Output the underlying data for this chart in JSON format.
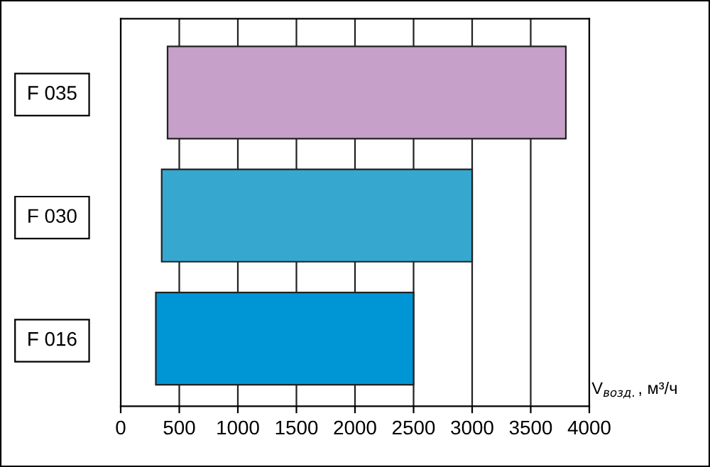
{
  "chart_data": {
    "type": "bar",
    "orientation": "horizontal",
    "categories": [
      "F 035",
      "F 030",
      "F 016"
    ],
    "values": [
      3400,
      2650,
      2200
    ],
    "base": [
      400,
      350,
      300
    ],
    "colors": [
      "#c6a0c9",
      "#36a8cf",
      "#0096d6"
    ],
    "xlabel": "V$_{возд.}$, м³/ч",
    "xlim": [
      0,
      4000
    ],
    "xticks": [
      0,
      500,
      1000,
      1500,
      2000,
      2500,
      3000,
      3500,
      4000
    ],
    "grid": "x"
  }
}
